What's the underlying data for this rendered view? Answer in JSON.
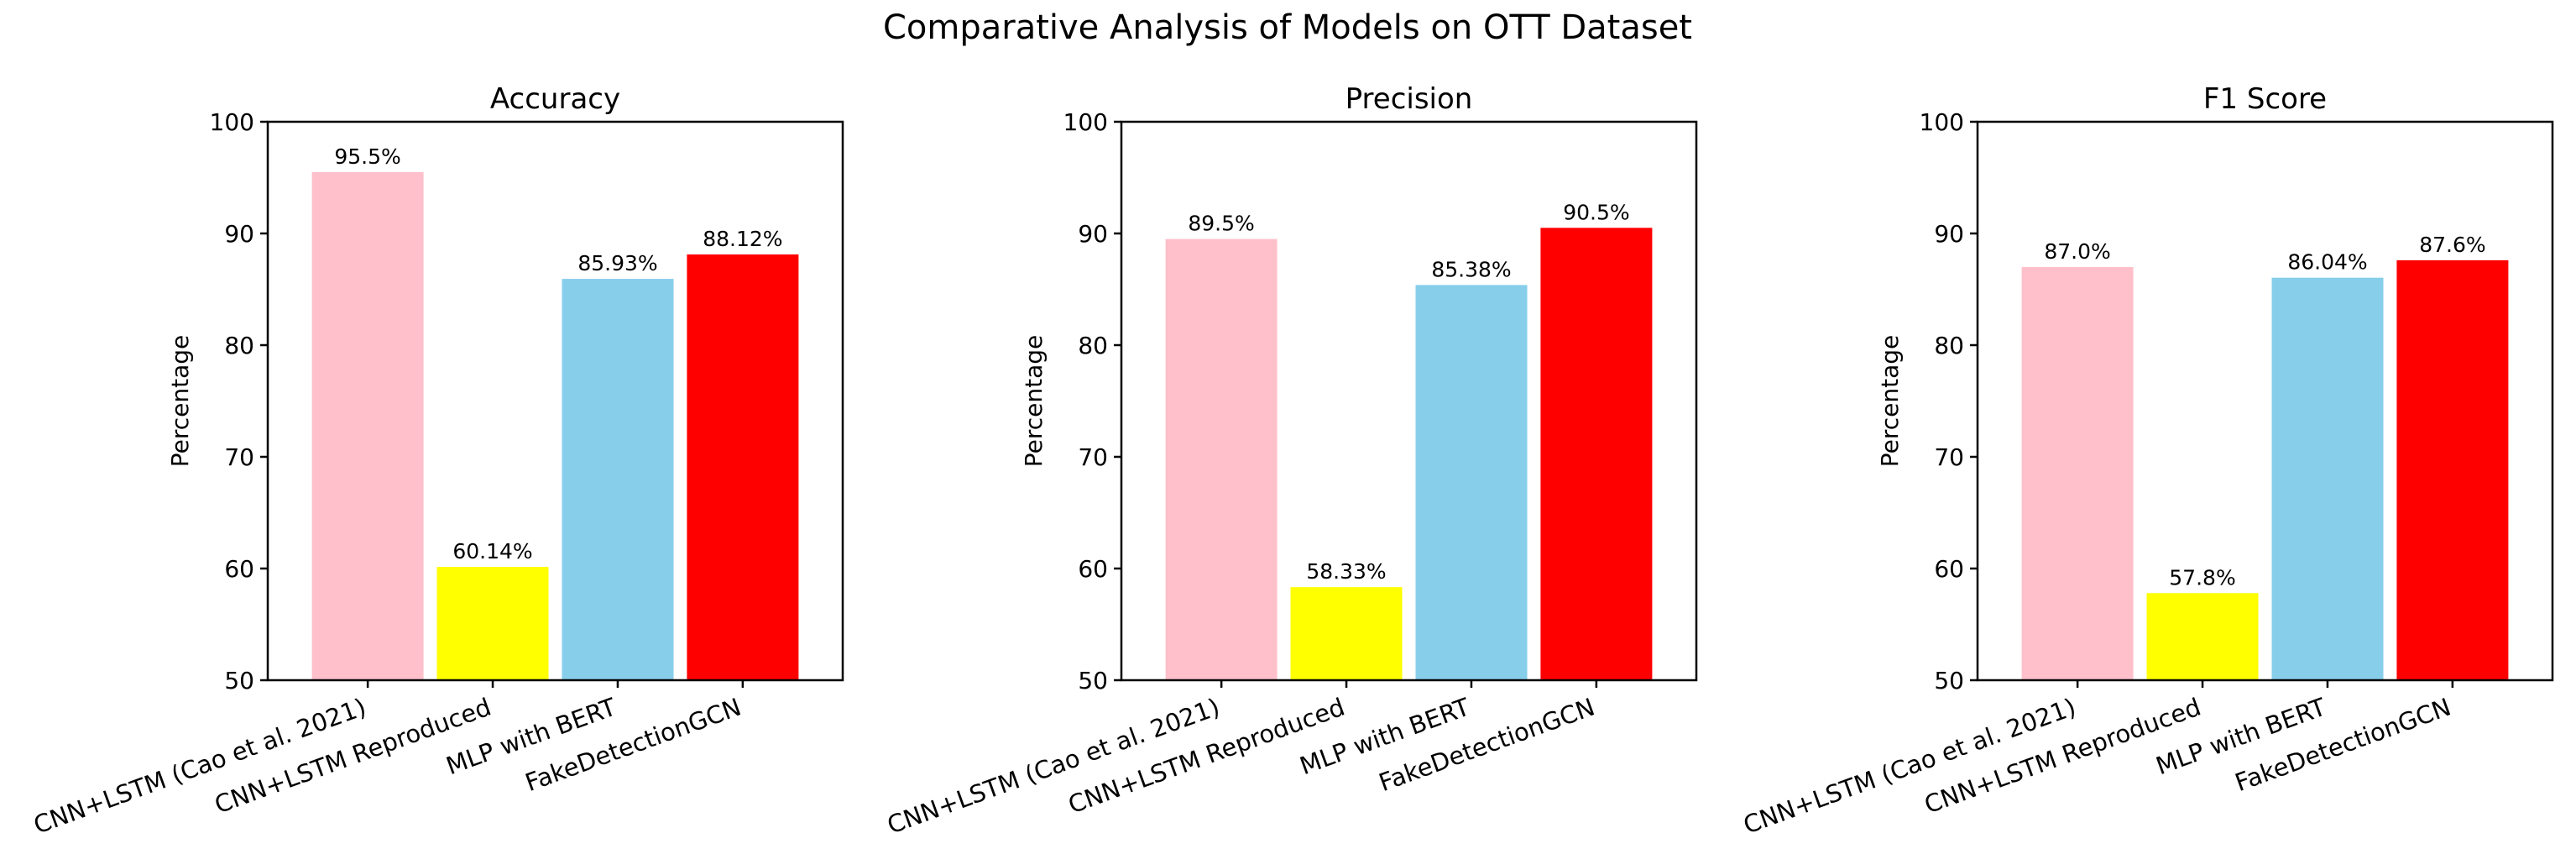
{
  "figure": {
    "title": "Comparative Analysis of Models on OTT Dataset"
  },
  "chart_data": [
    {
      "type": "bar",
      "title": "Accuracy",
      "xlabel": "",
      "ylabel": "Percentage",
      "ylim": [
        50,
        100
      ],
      "yticks": [
        50,
        60,
        70,
        80,
        90,
        100
      ],
      "categories": [
        "CNN+LSTM (Cao et al. 2021)",
        "CNN+LSTM Reproduced",
        "MLP with BERT",
        "FakeDetectionGCN"
      ],
      "values": [
        95.5,
        60.14,
        85.93,
        88.12
      ],
      "labels": [
        "95.5%",
        "60.14%",
        "85.93%",
        "88.12%"
      ],
      "colors": [
        "#ffc0cb",
        "#ffff00",
        "#87ceeb",
        "#ff0000"
      ],
      "grid": false
    },
    {
      "type": "bar",
      "title": "Precision",
      "xlabel": "",
      "ylabel": "Percentage",
      "ylim": [
        50,
        100
      ],
      "yticks": [
        50,
        60,
        70,
        80,
        90,
        100
      ],
      "categories": [
        "CNN+LSTM (Cao et al. 2021)",
        "CNN+LSTM Reproduced",
        "MLP with BERT",
        "FakeDetectionGCN"
      ],
      "values": [
        89.5,
        58.33,
        85.38,
        90.5
      ],
      "labels": [
        "89.5%",
        "58.33%",
        "85.38%",
        "90.5%"
      ],
      "colors": [
        "#ffc0cb",
        "#ffff00",
        "#87ceeb",
        "#ff0000"
      ],
      "grid": false
    },
    {
      "type": "bar",
      "title": "F1 Score",
      "xlabel": "",
      "ylabel": "Percentage",
      "ylim": [
        50,
        100
      ],
      "yticks": [
        50,
        60,
        70,
        80,
        90,
        100
      ],
      "categories": [
        "CNN+LSTM (Cao et al. 2021)",
        "CNN+LSTM Reproduced",
        "MLP with BERT",
        "FakeDetectionGCN"
      ],
      "values": [
        87.0,
        57.8,
        86.04,
        87.6
      ],
      "labels": [
        "87.0%",
        "57.8%",
        "86.04%",
        "87.6%"
      ],
      "colors": [
        "#ffc0cb",
        "#ffff00",
        "#87ceeb",
        "#ff0000"
      ],
      "grid": false
    }
  ]
}
